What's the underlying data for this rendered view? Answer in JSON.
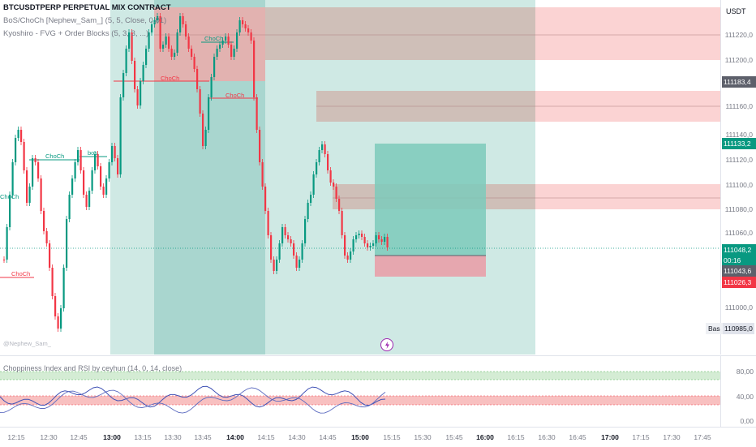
{
  "header": {
    "symbol": "BTCUSDTPERP PERPETUAL MIX CONTRACT",
    "ind1": "BoS/ChoCh [Nephew_Sam_] (5, 5, Close, 0.01)",
    "ind2": "Kyoshiro - FVG + Order Blocks (5, 3, 3, ...)"
  },
  "currency": "USDT",
  "price_axis": {
    "labels": [
      "111220,0",
      "111200,0",
      "111160,0",
      "111140,0",
      "111120,0",
      "111100,0",
      "111080,0",
      "111060,0",
      "111000,0"
    ],
    "tags": [
      {
        "text": "111183,4",
        "color": "#5d606b"
      },
      {
        "text": "111133,2",
        "color": "#089981"
      },
      {
        "text": "111048,2",
        "color": "#089981"
      },
      {
        "text": "00:16",
        "color": "#089981"
      },
      {
        "text": "111043,6",
        "color": "#5d606b"
      },
      {
        "text": "111026,3",
        "color": "#f23645"
      }
    ],
    "bas_label": "Bas",
    "bas_value": "110985,0"
  },
  "chart_labels": {
    "choch": "ChoCh",
    "bos": "bos",
    "watermark": "@Nephew_Sam_"
  },
  "indicator": {
    "title": "Choppiness Index and RSI by ceyhun (14, 0, 14, close)",
    "labels": [
      "80,00",
      "40,00",
      "0,00"
    ]
  },
  "time_axis": {
    "labels": [
      {
        "t": "12:15",
        "bold": false
      },
      {
        "t": "12:30",
        "bold": false
      },
      {
        "t": "12:45",
        "bold": false
      },
      {
        "t": "13:00",
        "bold": true
      },
      {
        "t": "13:15",
        "bold": false
      },
      {
        "t": "13:30",
        "bold": false
      },
      {
        "t": "13:45",
        "bold": false
      },
      {
        "t": "14:00",
        "bold": true
      },
      {
        "t": "14:15",
        "bold": false
      },
      {
        "t": "14:30",
        "bold": false
      },
      {
        "t": "14:45",
        "bold": false
      },
      {
        "t": "15:00",
        "bold": true
      },
      {
        "t": "15:15",
        "bold": false
      },
      {
        "t": "15:30",
        "bold": false
      },
      {
        "t": "15:45",
        "bold": false
      },
      {
        "t": "16:00",
        "bold": true
      },
      {
        "t": "16:15",
        "bold": false
      },
      {
        "t": "16:30",
        "bold": false
      },
      {
        "t": "16:45",
        "bold": false
      },
      {
        "t": "17:00",
        "bold": true
      },
      {
        "t": "17:15",
        "bold": false
      },
      {
        "t": "17:30",
        "bold": false
      },
      {
        "t": "17:45",
        "bold": false
      }
    ]
  },
  "colors": {
    "up": "#089981",
    "down": "#f23645",
    "accent_purple": "#9c27b0"
  },
  "icons": {
    "lightning": "lightning-icon"
  }
}
